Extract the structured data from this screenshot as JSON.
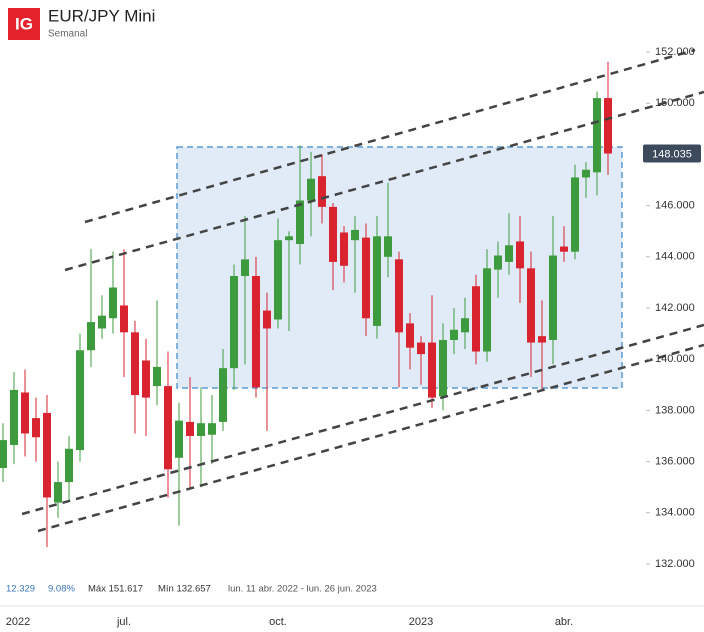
{
  "chart_data": {
    "type": "candlestick",
    "logo": "IG",
    "title": "EUR/JPY Mini",
    "subtitle": "Semanal",
    "categories": [
      null,
      "2022",
      null,
      null,
      null,
      null,
      null,
      null,
      null,
      null,
      null,
      "jul.",
      null,
      null,
      null,
      null,
      null,
      null,
      null,
      null,
      null,
      null,
      null,
      null,
      null,
      "oct.",
      null,
      null,
      null,
      null,
      null,
      null,
      null,
      null,
      null,
      null,
      null,
      null,
      "2023",
      null,
      null,
      null,
      null,
      null,
      null,
      null,
      null,
      null,
      null,
      null,
      null,
      "abr.",
      null,
      null,
      null,
      null
    ],
    "open": [
      135.75,
      136.65,
      138.7,
      137.7,
      137.9,
      134.4,
      135.2,
      136.45,
      140.35,
      141.2,
      141.6,
      142.1,
      141.05,
      139.95,
      138.95,
      138.95,
      136.15,
      137.55,
      137.0,
      137.05,
      137.55,
      139.65,
      143.25,
      143.25,
      141.9,
      141.55,
      144.65,
      144.5,
      146.2,
      147.15,
      145.95,
      144.95,
      144.65,
      144.75,
      141.3,
      144.0,
      143.9,
      141.4,
      140.65,
      140.65,
      138.55,
      140.75,
      141.05,
      142.85,
      140.3,
      143.5,
      143.8,
      144.6,
      143.55,
      140.9,
      140.75,
      144.4,
      144.2,
      147.1,
      147.3,
      150.2
    ],
    "high": [
      137.5,
      139.5,
      139.6,
      138.5,
      138.6,
      136.0,
      137.0,
      141.0,
      144.3,
      142.5,
      144.2,
      144.3,
      141.5,
      140.8,
      142.3,
      140.3,
      138.3,
      139.3,
      138.9,
      138.6,
      140.4,
      143.7,
      145.6,
      144.0,
      142.6,
      145.5,
      145.0,
      148.35,
      148.1,
      148.0,
      146.1,
      145.2,
      145.6,
      145.3,
      145.6,
      146.9,
      144.2,
      141.8,
      140.9,
      142.5,
      141.4,
      142.0,
      142.4,
      143.3,
      144.3,
      144.6,
      145.7,
      145.6,
      144.2,
      142.3,
      145.6,
      145.2,
      147.6,
      147.7,
      150.45,
      151.617
    ],
    "low": [
      135.2,
      135.9,
      136.2,
      136.0,
      132.657,
      133.8,
      134.5,
      136.0,
      139.7,
      140.8,
      141.0,
      139.3,
      137.1,
      137.0,
      138.2,
      134.6,
      133.5,
      135.0,
      135.0,
      135.9,
      137.2,
      138.8,
      139.8,
      138.5,
      137.2,
      141.2,
      141.1,
      143.7,
      144.8,
      145.3,
      142.7,
      143.0,
      142.6,
      140.9,
      140.8,
      143.2,
      138.9,
      139.6,
      139.0,
      138.1,
      138.0,
      140.2,
      140.4,
      139.8,
      139.9,
      142.4,
      143.3,
      142.2,
      139.3,
      138.8,
      139.8,
      143.8,
      143.9,
      146.3,
      146.4,
      147.2
    ],
    "close": [
      136.84,
      138.8,
      137.1,
      136.95,
      134.6,
      135.2,
      136.5,
      140.35,
      141.45,
      141.7,
      142.8,
      141.05,
      138.6,
      138.5,
      139.7,
      135.7,
      137.6,
      137.0,
      137.5,
      137.5,
      139.65,
      143.25,
      143.9,
      138.9,
      141.2,
      144.65,
      144.8,
      146.2,
      147.05,
      145.95,
      143.8,
      143.65,
      145.05,
      141.6,
      144.8,
      144.8,
      141.05,
      140.45,
      140.2,
      138.5,
      140.75,
      141.15,
      141.6,
      140.3,
      143.55,
      144.05,
      144.45,
      143.55,
      140.65,
      140.65,
      144.05,
      144.2,
      147.1,
      147.4,
      150.2,
      148.035
    ],
    "up_color": "#3d9b3d",
    "down_color": "#d9232e",
    "ylim": [
      131.453,
      152.469
    ],
    "yticks": [
      {
        "value": 132,
        "label": "132.000"
      },
      {
        "value": 134,
        "label": "134.000"
      },
      {
        "value": 136,
        "label": "136.000"
      },
      {
        "value": 138,
        "label": "138.000"
      },
      {
        "value": 140,
        "label": "140.000"
      },
      {
        "value": 142,
        "label": "142.000"
      },
      {
        "value": 144,
        "label": "144.000"
      },
      {
        "value": 146,
        "label": "146.000"
      },
      {
        "value": 148,
        "label": "148.000"
      },
      {
        "value": 150,
        "label": "150.000"
      },
      {
        "value": 152,
        "label": "152.000"
      }
    ],
    "stats": [
      "12.329",
      "9.08%",
      "Máx 151.617",
      "Mín 132.657",
      "lun. 11 abr. 2022 - lun. 26 jun. 2023"
    ]
  }
}
